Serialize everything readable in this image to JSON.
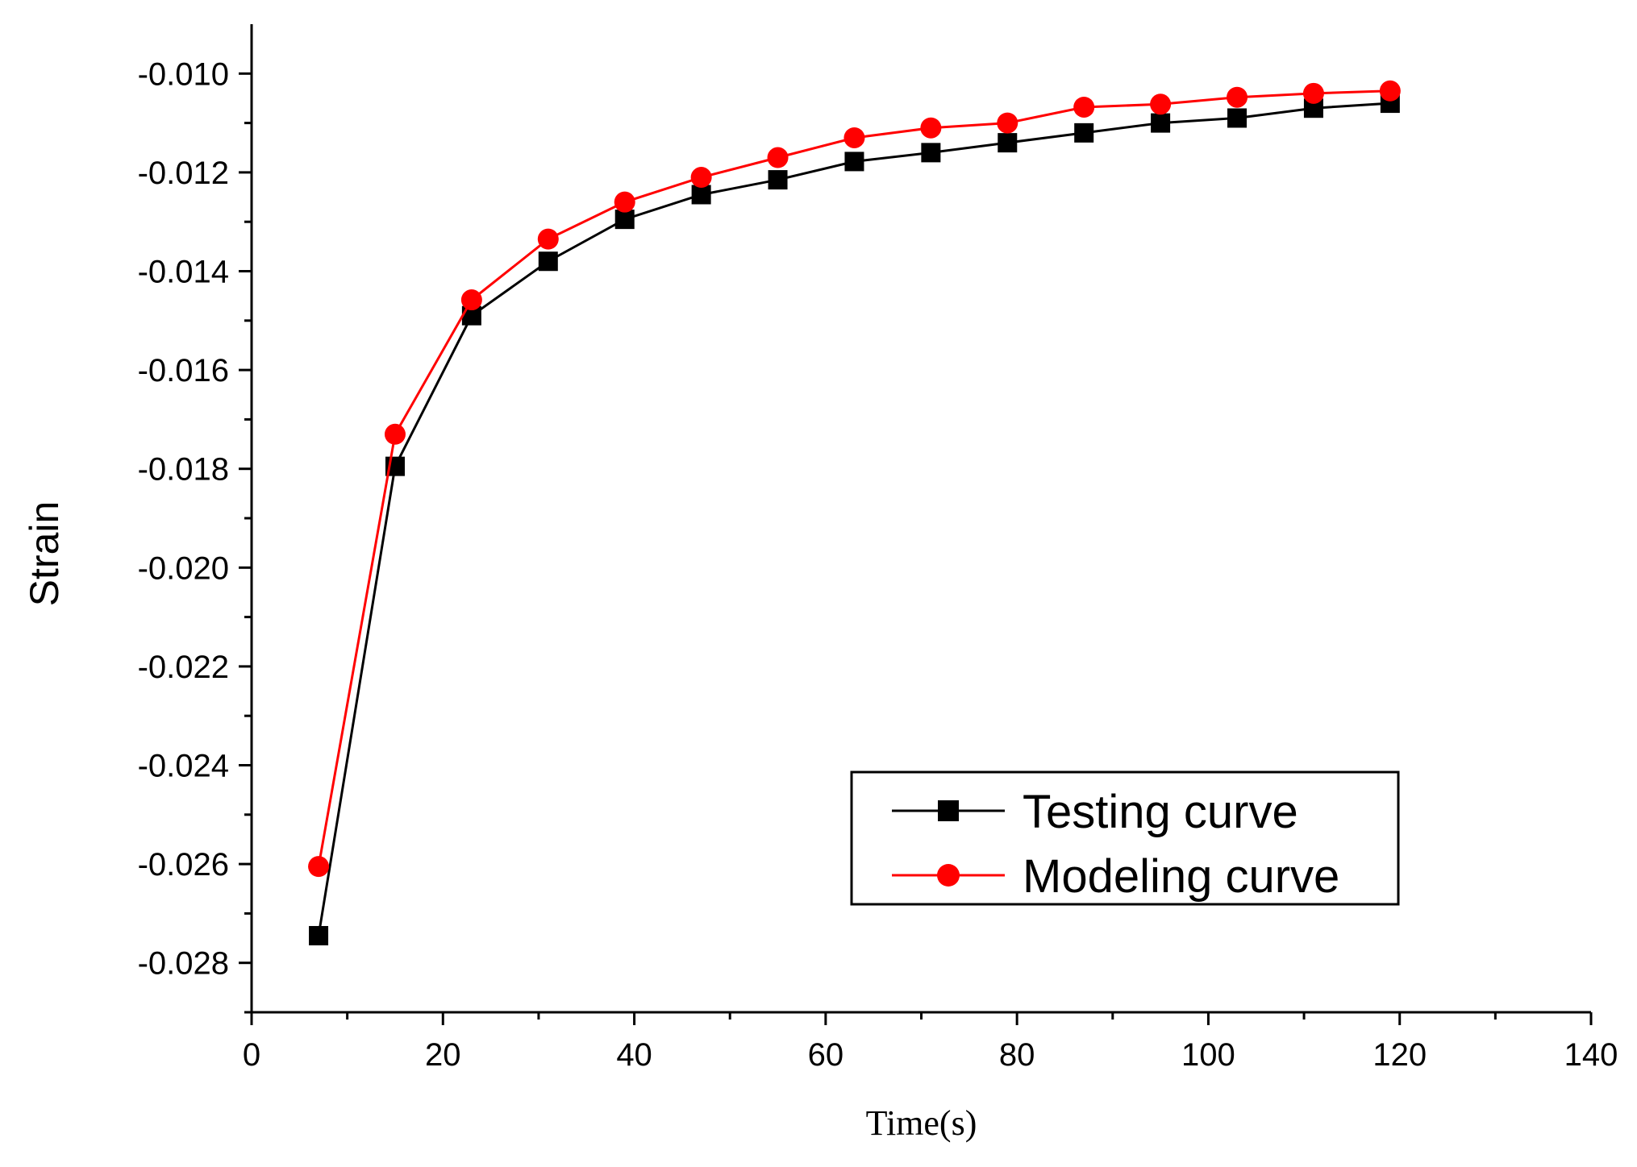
{
  "chart_data": {
    "type": "line",
    "title": "",
    "xlabel": "Time(s)",
    "ylabel": "Strain",
    "xlim": [
      0,
      140
    ],
    "ylim": [
      -0.029,
      -0.009
    ],
    "x_ticks": [
      0,
      20,
      40,
      60,
      80,
      100,
      120,
      140
    ],
    "x_tick_labels": [
      "0",
      "20",
      "40",
      "60",
      "80",
      "100",
      "120",
      "140"
    ],
    "y_ticks": [
      -0.028,
      -0.026,
      -0.024,
      -0.022,
      -0.02,
      -0.018,
      -0.016,
      -0.014,
      -0.012,
      -0.01
    ],
    "y_tick_labels": [
      "-0.028",
      "-0.026",
      "-0.024",
      "-0.022",
      "-0.020",
      "-0.018",
      "-0.016",
      "-0.014",
      "-0.012",
      "-0.010"
    ],
    "grid": false,
    "legend_position": "bottom-right",
    "x": [
      7,
      15,
      23,
      31,
      39,
      47,
      55,
      63,
      71,
      79,
      87,
      95,
      103,
      111,
      119
    ],
    "series": [
      {
        "name": "Testing curve",
        "color": "#000000",
        "marker": "square",
        "values": [
          -0.02745,
          -0.01795,
          -0.0149,
          -0.0138,
          -0.01295,
          -0.01245,
          -0.01215,
          -0.01178,
          -0.0116,
          -0.0114,
          -0.0112,
          -0.011,
          -0.0109,
          -0.0107,
          -0.0106
        ]
      },
      {
        "name": "Modeling curve",
        "color": "#ff0000",
        "marker": "circle",
        "values": [
          -0.02605,
          -0.0173,
          -0.01458,
          -0.01335,
          -0.0126,
          -0.0121,
          -0.0117,
          -0.0113,
          -0.0111,
          -0.011,
          -0.01068,
          -0.01062,
          -0.01048,
          -0.0104,
          -0.01035
        ]
      }
    ]
  }
}
